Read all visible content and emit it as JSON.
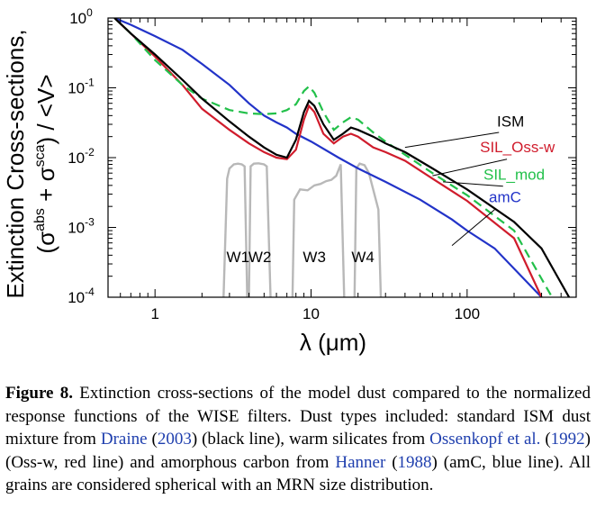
{
  "chart_data": {
    "type": "line",
    "xscale": "log",
    "yscale": "log",
    "xlim": [
      0.5,
      500
    ],
    "ylim": [
      0.0001,
      1
    ],
    "xticks": [
      1,
      10,
      100
    ],
    "xtick_labels": [
      "1",
      "10",
      "100"
    ],
    "yticks": [
      1,
      0.1,
      0.01,
      0.001,
      0.0001
    ],
    "ytick_labels": [
      {
        "base": "10",
        "exp": "0"
      },
      {
        "base": "10",
        "exp": "-1"
      },
      {
        "base": "10",
        "exp": "-2"
      },
      {
        "base": "10",
        "exp": "-3"
      },
      {
        "base": "10",
        "exp": "-4"
      }
    ],
    "xlabel": "λ (μm)",
    "ylabel_line1": "Extinction Cross-sections,",
    "ylabel_line2": {
      "open": "(σ",
      "sup1": "abs",
      "plus": " + σ",
      "sup2": "sca",
      "close": ") / <V>"
    },
    "series": [
      {
        "name": "ISM",
        "color": "#000000",
        "dashed": false,
        "label_x": 190,
        "label_y": 0.028,
        "pointer": [
          [
            160,
            0.023
          ],
          [
            40,
            0.014
          ]
        ],
        "points": [
          [
            0.55,
            1.0
          ],
          [
            0.7,
            0.6
          ],
          [
            1.0,
            0.3
          ],
          [
            1.5,
            0.13
          ],
          [
            2.0,
            0.07
          ],
          [
            3.0,
            0.033
          ],
          [
            4.0,
            0.02
          ],
          [
            5.0,
            0.014
          ],
          [
            6.0,
            0.011
          ],
          [
            7.0,
            0.01
          ],
          [
            8.0,
            0.018
          ],
          [
            9.0,
            0.045
          ],
          [
            9.7,
            0.065
          ],
          [
            10.5,
            0.055
          ],
          [
            12.0,
            0.03
          ],
          [
            14.0,
            0.018
          ],
          [
            16.0,
            0.022
          ],
          [
            18.0,
            0.027
          ],
          [
            20.0,
            0.025
          ],
          [
            25.0,
            0.02
          ],
          [
            30.0,
            0.016
          ],
          [
            40.0,
            0.012
          ],
          [
            60.0,
            0.007
          ],
          [
            100.0,
            0.0035
          ],
          [
            200.0,
            0.0012
          ],
          [
            300.0,
            0.0005
          ],
          [
            450.0,
            0.0001
          ]
        ]
      },
      {
        "name": "SIL_Oss-w",
        "color": "#d01c2c",
        "dashed": false,
        "label_x": 210,
        "label_y": 0.012,
        "pointer": [
          [
            180,
            0.0095
          ],
          [
            60,
            0.0055
          ]
        ],
        "points": [
          [
            0.55,
            1.0
          ],
          [
            0.7,
            0.6
          ],
          [
            1.0,
            0.28
          ],
          [
            1.5,
            0.11
          ],
          [
            2.0,
            0.05
          ],
          [
            3.0,
            0.025
          ],
          [
            4.0,
            0.016
          ],
          [
            5.0,
            0.012
          ],
          [
            6.0,
            0.01
          ],
          [
            7.0,
            0.0095
          ],
          [
            8.0,
            0.013
          ],
          [
            9.0,
            0.035
          ],
          [
            9.7,
            0.055
          ],
          [
            10.5,
            0.045
          ],
          [
            12.0,
            0.022
          ],
          [
            14.0,
            0.016
          ],
          [
            16.0,
            0.02
          ],
          [
            18.0,
            0.022
          ],
          [
            20.0,
            0.02
          ],
          [
            25.0,
            0.014
          ],
          [
            30.0,
            0.012
          ],
          [
            40.0,
            0.009
          ],
          [
            60.0,
            0.005
          ],
          [
            100.0,
            0.0024
          ],
          [
            200.0,
            0.0007
          ],
          [
            300.0,
            0.0001
          ]
        ]
      },
      {
        "name": "SIL_mod",
        "color": "#22c04a",
        "dashed": true,
        "label_x": 200,
        "label_y": 0.0048,
        "pointer": [
          [
            170,
            0.0039
          ],
          [
            70,
            0.0045
          ]
        ],
        "points": [
          [
            0.55,
            1.0
          ],
          [
            0.7,
            0.6
          ],
          [
            1.0,
            0.25
          ],
          [
            1.5,
            0.11
          ],
          [
            2.0,
            0.07
          ],
          [
            3.0,
            0.048
          ],
          [
            4.0,
            0.043
          ],
          [
            5.0,
            0.042
          ],
          [
            6.0,
            0.043
          ],
          [
            7.0,
            0.048
          ],
          [
            8.0,
            0.058
          ],
          [
            9.0,
            0.09
          ],
          [
            9.7,
            0.105
          ],
          [
            10.5,
            0.085
          ],
          [
            12.0,
            0.045
          ],
          [
            14.0,
            0.025
          ],
          [
            16.0,
            0.032
          ],
          [
            18.0,
            0.038
          ],
          [
            20.0,
            0.035
          ],
          [
            25.0,
            0.023
          ],
          [
            30.0,
            0.017
          ],
          [
            40.0,
            0.011
          ],
          [
            60.0,
            0.006
          ],
          [
            100.0,
            0.0029
          ],
          [
            200.0,
            0.0009
          ],
          [
            350.0,
            0.0001
          ]
        ]
      },
      {
        "name": "amC",
        "color": "#2233c8",
        "dashed": false,
        "label_x": 175,
        "label_y": 0.0023,
        "pointer": [
          [
            150,
            0.0018
          ],
          [
            80,
            0.00055
          ]
        ],
        "points": [
          [
            0.55,
            1.0
          ],
          [
            0.7,
            0.8
          ],
          [
            1.0,
            0.55
          ],
          [
            1.5,
            0.35
          ],
          [
            2.0,
            0.22
          ],
          [
            3.0,
            0.11
          ],
          [
            4.0,
            0.06
          ],
          [
            5.0,
            0.04
          ],
          [
            6.0,
            0.032
          ],
          [
            7.0,
            0.027
          ],
          [
            8.0,
            0.022
          ],
          [
            10.0,
            0.017
          ],
          [
            15.0,
            0.01
          ],
          [
            20.0,
            0.007
          ],
          [
            30.0,
            0.0045
          ],
          [
            50.0,
            0.0025
          ],
          [
            80.0,
            0.0013
          ],
          [
            100.0,
            0.0009
          ],
          [
            150.0,
            0.0005
          ],
          [
            300.0,
            0.0001
          ]
        ]
      }
    ],
    "filters": [
      {
        "name": "W1",
        "color": "#b8b8b8",
        "label_x": 3.4,
        "label_y": 0.00032,
        "points": [
          [
            2.75,
            0.0001
          ],
          [
            2.9,
            0.005
          ],
          [
            3.0,
            0.007
          ],
          [
            3.2,
            0.008
          ],
          [
            3.4,
            0.0082
          ],
          [
            3.6,
            0.008
          ],
          [
            3.75,
            0.0075
          ],
          [
            3.9,
            0.0001
          ]
        ]
      },
      {
        "name": "W2",
        "color": "#b8b8b8",
        "label_x": 4.7,
        "label_y": 0.00032,
        "points": [
          [
            4.0,
            0.0001
          ],
          [
            4.1,
            0.0075
          ],
          [
            4.3,
            0.0082
          ],
          [
            4.6,
            0.0083
          ],
          [
            5.0,
            0.008
          ],
          [
            5.2,
            0.0075
          ],
          [
            5.5,
            0.0001
          ]
        ]
      },
      {
        "name": "W3",
        "color": "#b8b8b8",
        "label_x": 10.5,
        "label_y": 0.00032,
        "points": [
          [
            7.6,
            0.0001
          ],
          [
            7.8,
            0.0025
          ],
          [
            8.5,
            0.0035
          ],
          [
            9.5,
            0.0034
          ],
          [
            10.5,
            0.004
          ],
          [
            11.5,
            0.0042
          ],
          [
            12.5,
            0.0046
          ],
          [
            13.5,
            0.0048
          ],
          [
            14.5,
            0.0055
          ],
          [
            15.5,
            0.008
          ],
          [
            16.3,
            0.0001
          ]
        ]
      },
      {
        "name": "W4",
        "color": "#b8b8b8",
        "label_x": 21.5,
        "label_y": 0.00032,
        "points": [
          [
            19.0,
            0.0001
          ],
          [
            19.5,
            0.007
          ],
          [
            20.5,
            0.0082
          ],
          [
            22.0,
            0.0078
          ],
          [
            23.5,
            0.006
          ],
          [
            25.0,
            0.0035
          ],
          [
            27.0,
            0.0018
          ],
          [
            28.0,
            0.0001
          ]
        ]
      }
    ]
  },
  "caption": {
    "label": "Figure 8.",
    "parts": [
      " Extinction cross-sections of the model dust compared to the normalized response functions of the WISE filters. Dust types included: standard ISM dust mixture from ",
      "Draine",
      " (",
      "2003",
      ") (black line), warm silicates from ",
      "Ossenkopf et al.",
      " (",
      "1992",
      ") (Oss-w, red line) and amorphous carbon from ",
      "Hanner",
      " (",
      "1988",
      ") (amC, blue line). All grains are considered spherical with an MRN size distribution."
    ]
  }
}
